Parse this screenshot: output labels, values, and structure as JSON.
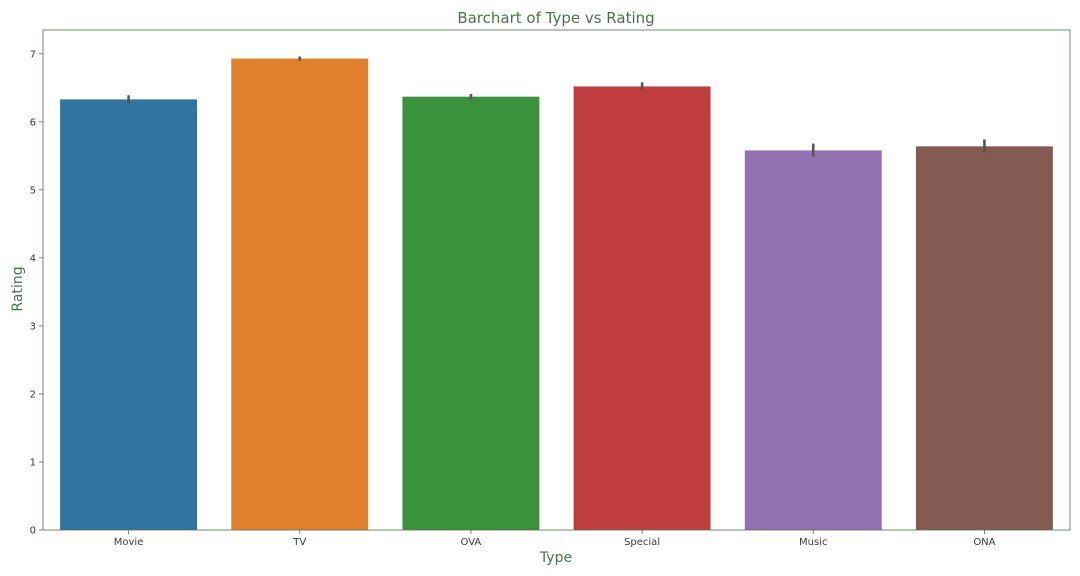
{
  "chart_data": {
    "type": "bar",
    "title": "Barchart of Type vs Rating",
    "xlabel": "Type",
    "ylabel": "Rating",
    "ylim": [
      0,
      7.35
    ],
    "yticks": [
      0,
      1,
      2,
      3,
      4,
      5,
      6,
      7
    ],
    "grid": false,
    "categories": [
      "Movie",
      "TV",
      "OVA",
      "Special",
      "Music",
      "ONA"
    ],
    "values": [
      6.33,
      6.93,
      6.37,
      6.52,
      5.58,
      5.64
    ],
    "error_low": [
      6.27,
      6.9,
      6.33,
      6.47,
      5.49,
      5.55
    ],
    "error_high": [
      6.39,
      6.96,
      6.41,
      6.58,
      5.68,
      5.74
    ],
    "colors": [
      "#3274a1",
      "#e1812c",
      "#3a923a",
      "#c03d3e",
      "#9372b2",
      "#845b53"
    ],
    "error_color": "#555555",
    "title_color": "#4f6f4f",
    "axis_color": "#4f6f4f"
  }
}
